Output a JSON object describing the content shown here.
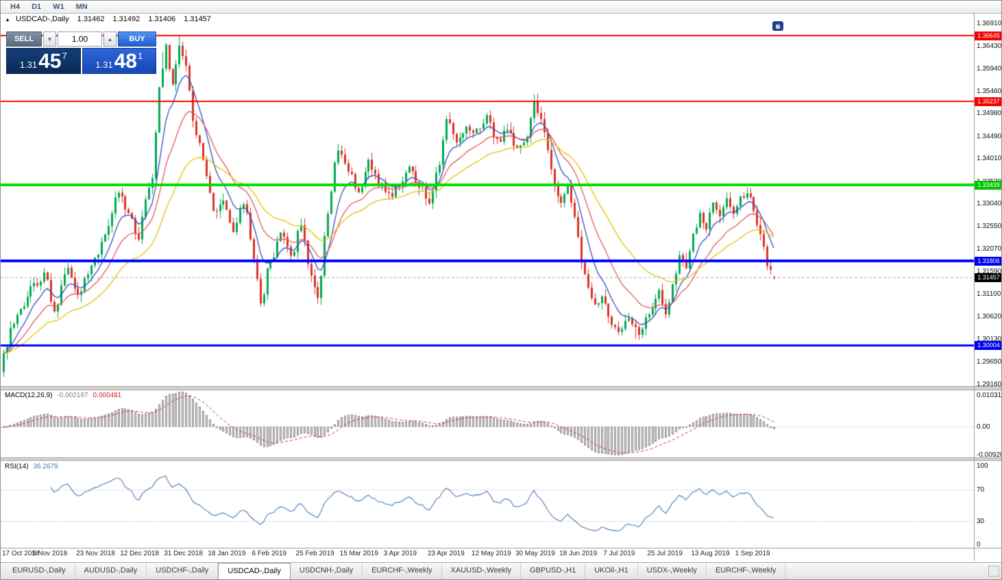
{
  "toolbar": {
    "timeframes": [
      "H4",
      "D1",
      "W1",
      "MN"
    ]
  },
  "chart_header": {
    "symbol": "USDCAD-,Daily",
    "open": "1.31462",
    "high": "1.31492",
    "low": "1.31406",
    "close": "1.31457"
  },
  "icons": {
    "one_click_toggle": "▲",
    "spinner_down": "▼",
    "spinner_up": "▲",
    "widget": "▦"
  },
  "trade_panel": {
    "sell_label": "SELL",
    "buy_label": "BUY",
    "volume": "1.00",
    "sell_price": {
      "prefix": "1.31",
      "big": "45",
      "sup": "7"
    },
    "buy_price": {
      "prefix": "1.31",
      "big": "48",
      "sup": "1"
    }
  },
  "price_axis": {
    "labels": [
      "1.36910",
      "1.36430",
      "1.35940",
      "1.35460",
      "1.34980",
      "1.34490",
      "1.34010",
      "1.33520",
      "1.33040",
      "1.32550",
      "1.32070",
      "1.31590",
      "1.31100",
      "1.30620",
      "1.30130",
      "1.29650",
      "1.29160"
    ]
  },
  "price_tags": [
    {
      "text": "1.36645",
      "bg": "#F50000"
    },
    {
      "text": "1.35237",
      "bg": "#F50000"
    },
    {
      "text": "1.33439",
      "bg": "#00C400"
    },
    {
      "text": "1.31806",
      "bg": "#0000F0"
    },
    {
      "text": "1.31457",
      "bg": "#000000"
    },
    {
      "text": "1.30004",
      "bg": "#0000F0"
    }
  ],
  "macd_panel": {
    "name": "MACD(12,26,9)",
    "value_main": "-0.002197",
    "value_signal": "0.000481",
    "scale": [
      "0.010311",
      "0.00",
      "-0.009203"
    ]
  },
  "rsi_panel": {
    "name": "RSI(14)",
    "value": "36.2679",
    "scale": [
      "100",
      "70",
      "30",
      "0"
    ]
  },
  "date_axis": [
    "17 Oct 2018",
    "5 Nov 2018",
    "23 Nov 2018",
    "12 Dec 2018",
    "31 Dec 2018",
    "18 Jan 2019",
    "6 Feb 2019",
    "25 Feb 2019",
    "15 Mar 2019",
    "3 Apr 2019",
    "23 Apr 2019",
    "12 May 2019",
    "30 May 2019",
    "18 Jun 2019",
    "7 Jul 2019",
    "25 Jul 2019",
    "13 Aug 2019",
    "1 Sep 2019"
  ],
  "tab_bar": {
    "items": [
      "EURUSD-,Daily",
      "AUDUSD-,Daily",
      "USDCHF-,Daily",
      "USDCAD-,Daily",
      "USDCNH-,Daily",
      "EURCHF-,Weekly",
      "XAUUSD-,Weekly",
      "GBPUSD-,H1",
      "UKOil-,H1",
      "USDX-,Weekly",
      "EURCHF-,Weekly"
    ],
    "active_index": 3
  },
  "chart_data": {
    "type": "candlestick",
    "title": "USDCAD-,Daily",
    "price_range": {
      "max": 1.3691,
      "min": 1.2916
    },
    "bar_count": 229,
    "bars_per_x_label": 13,
    "first_label_bar_index": 1,
    "x_labels": [
      "17 Oct 2018",
      "5 Nov 2018",
      "23 Nov 2018",
      "12 Dec 2018",
      "31 Dec 2018",
      "18 Jan 2019",
      "6 Feb 2019",
      "25 Feb 2019",
      "15 Mar 2019",
      "3 Apr 2019",
      "23 Apr 2019",
      "12 May 2019",
      "30 May 2019",
      "18 Jun 2019",
      "7 Jul 2019",
      "25 Jul 2019",
      "13 Aug 2019",
      "1 Sep 2019"
    ],
    "anchors": [
      [
        0,
        1.2975
      ],
      [
        2,
        1.303
      ],
      [
        5,
        1.308
      ],
      [
        9,
        1.3125
      ],
      [
        12,
        1.315
      ],
      [
        15,
        1.308
      ],
      [
        19,
        1.316
      ],
      [
        22,
        1.311
      ],
      [
        25,
        1.316
      ],
      [
        28,
        1.32
      ],
      [
        31,
        1.326
      ],
      [
        34,
        1.333
      ],
      [
        37,
        1.328
      ],
      [
        40,
        1.323
      ],
      [
        42,
        1.331
      ],
      [
        44,
        1.336
      ],
      [
        46,
        1.356
      ],
      [
        48,
        1.364
      ],
      [
        50,
        1.356
      ],
      [
        52,
        1.365
      ],
      [
        54,
        1.36
      ],
      [
        56,
        1.348
      ],
      [
        58,
        1.343
      ],
      [
        60,
        1.336
      ],
      [
        62,
        1.329
      ],
      [
        65,
        1.331
      ],
      [
        68,
        1.325
      ],
      [
        71,
        1.331
      ],
      [
        74,
        1.319
      ],
      [
        76,
        1.309
      ],
      [
        79,
        1.318
      ],
      [
        82,
        1.324
      ],
      [
        85,
        1.319
      ],
      [
        88,
        1.326
      ],
      [
        91,
        1.315
      ],
      [
        93,
        1.3105
      ],
      [
        96,
        1.329
      ],
      [
        99,
        1.342
      ],
      [
        102,
        1.338
      ],
      [
        105,
        1.333
      ],
      [
        108,
        1.339
      ],
      [
        111,
        1.335
      ],
      [
        114,
        1.332
      ],
      [
        117,
        1.334
      ],
      [
        120,
        1.338
      ],
      [
        123,
        1.334
      ],
      [
        126,
        1.331
      ],
      [
        129,
        1.339
      ],
      [
        131,
        1.349
      ],
      [
        134,
        1.344
      ],
      [
        137,
        1.347
      ],
      [
        140,
        1.346
      ],
      [
        143,
        1.349
      ],
      [
        146,
        1.344
      ],
      [
        149,
        1.346
      ],
      [
        152,
        1.342
      ],
      [
        155,
        1.345
      ],
      [
        157,
        1.352
      ],
      [
        159,
        1.348
      ],
      [
        161,
        1.342
      ],
      [
        163,
        1.335
      ],
      [
        165,
        1.33
      ],
      [
        167,
        1.334
      ],
      [
        169,
        1.328
      ],
      [
        171,
        1.318
      ],
      [
        173,
        1.312
      ],
      [
        175,
        1.308
      ],
      [
        177,
        1.311
      ],
      [
        179,
        1.306
      ],
      [
        182,
        1.302
      ],
      [
        184,
        1.306
      ],
      [
        186,
        1.304
      ],
      [
        188,
        1.3025
      ],
      [
        190,
        1.3055
      ],
      [
        192,
        1.3085
      ],
      [
        194,
        1.3115
      ],
      [
        196,
        1.307
      ],
      [
        198,
        1.3125
      ],
      [
        200,
        1.3185
      ],
      [
        202,
        1.3165
      ],
      [
        204,
        1.3235
      ],
      [
        206,
        1.3285
      ],
      [
        208,
        1.3255
      ],
      [
        210,
        1.3305
      ],
      [
        212,
        1.3275
      ],
      [
        214,
        1.3315
      ],
      [
        216,
        1.3285
      ],
      [
        218,
        1.3315
      ],
      [
        220,
        1.333
      ],
      [
        222,
        1.3295
      ],
      [
        224,
        1.3235
      ],
      [
        226,
        1.3175
      ],
      [
        228,
        1.31457
      ]
    ],
    "last_ohlc": {
      "open": 1.31462,
      "high": 1.31492,
      "low": 1.31406,
      "close": 1.31457
    },
    "candle_colors": {
      "up": "#00A651",
      "down": "#D93025"
    },
    "moving_averages": [
      {
        "period": 8,
        "color": "#2F4CC0"
      },
      {
        "period": 17,
        "color": "#E25858"
      },
      {
        "period": 34,
        "color": "#E3C200"
      }
    ],
    "horizontal_lines": [
      {
        "price": 1.36645,
        "color": "#FF0000",
        "width": 2
      },
      {
        "price": 1.35237,
        "color": "#FF0000",
        "width": 2
      },
      {
        "price": 1.33439,
        "color": "#00DC00",
        "width": 4
      },
      {
        "price": 1.31806,
        "color": "#0000FF",
        "width": 4
      },
      {
        "price": 1.30004,
        "color": "#0000FF",
        "width": 3
      }
    ],
    "bid_line": {
      "price": 1.31457,
      "color": "#B0B0B0"
    },
    "indicators": {
      "macd": {
        "params": "12,26,9",
        "main": -0.002197,
        "signal": 0.000481,
        "scale_labels": [
          "0.010311",
          "0.00",
          "-0.009203"
        ],
        "histogram_color": "#D4D4D4",
        "signal_color": "#D03030"
      },
      "rsi": {
        "period": 14,
        "value": 36.2679,
        "levels": [
          70,
          30
        ],
        "line_color": "#4877B5",
        "scale_labels": [
          "100",
          "70",
          "30",
          "0"
        ]
      }
    }
  }
}
